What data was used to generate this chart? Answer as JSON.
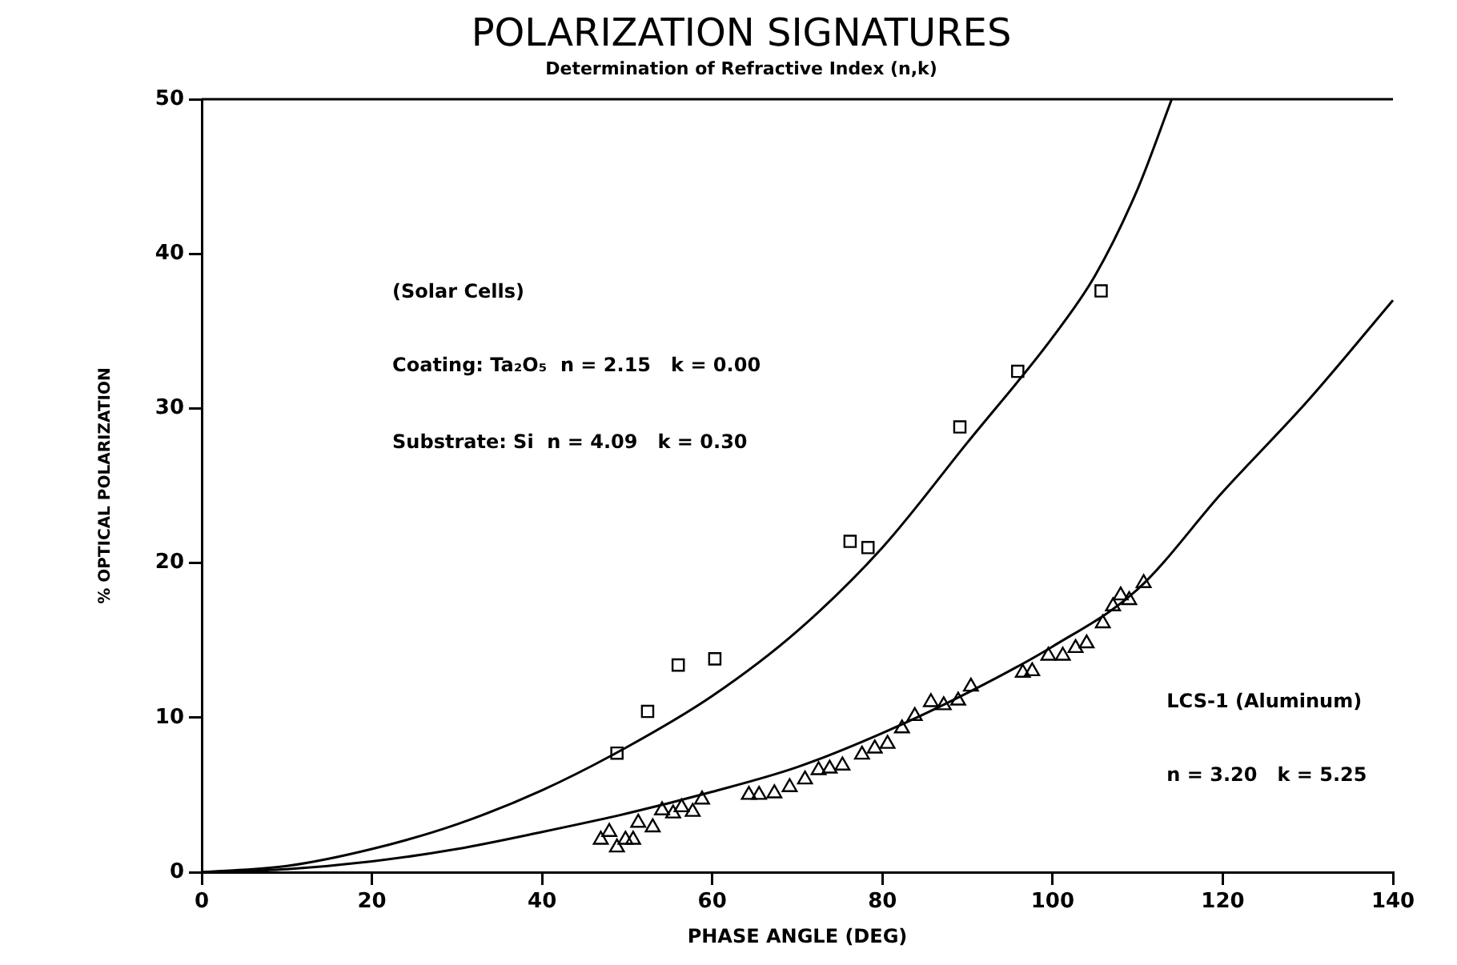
{
  "chart_data": {
    "type": "scatter",
    "title": "POLARIZATION SIGNATURES",
    "subtitle": "Determination of Refractive Index (n,k)",
    "xlabel": "PHASE ANGLE (DEG)",
    "ylabel": "% OPTICAL POLARIZATION",
    "xlim": [
      0,
      140
    ],
    "xticks": [
      0,
      20,
      40,
      60,
      80,
      100,
      120,
      140
    ],
    "ylim": [
      0,
      50
    ],
    "yticks": [
      0,
      10,
      20,
      30,
      40,
      50
    ],
    "grid": false,
    "legend": false,
    "annotations": [
      "(Solar Cells)",
      "Coating: Ta₂O₅  n = 2.15   k = 0.00",
      "Substrate: Si  n = 4.09   k = 0.30",
      "LCS-1 (Aluminum)",
      "n = 3.20   k = 5.25"
    ],
    "series": [
      {
        "marker": "square",
        "color": "#000000",
        "x": [
          48.8,
          52.4,
          56.0,
          60.3,
          76.2,
          78.3,
          89.1,
          95.9,
          105.7
        ],
        "values": [
          7.7,
          10.4,
          13.4,
          13.8,
          21.4,
          21.0,
          28.8,
          32.4,
          37.6
        ]
      },
      {
        "marker": "triangle",
        "color": "#000000",
        "x": [
          46.9,
          47.9,
          48.8,
          49.8,
          50.7,
          51.3,
          53.0,
          54.1,
          55.4,
          56.4,
          57.7,
          58.8,
          64.3,
          65.5,
          67.3,
          69.1,
          70.9,
          72.5,
          73.8,
          75.3,
          77.6,
          79.1,
          80.6,
          82.3,
          83.8,
          85.7,
          87.2,
          88.9,
          90.4,
          96.5,
          97.6,
          99.5,
          101.2,
          102.7,
          104.0,
          105.9,
          107.1,
          108.0,
          109.0,
          110.7
        ],
        "values": [
          2.1,
          2.6,
          1.6,
          2.1,
          2.1,
          3.2,
          2.9,
          4.0,
          3.8,
          4.2,
          3.9,
          4.7,
          5.0,
          5.0,
          5.1,
          5.5,
          6.0,
          6.6,
          6.7,
          6.9,
          7.6,
          8.0,
          8.3,
          9.3,
          10.1,
          11.0,
          10.8,
          11.1,
          12.0,
          12.9,
          13.0,
          14.0,
          14.0,
          14.5,
          14.8,
          16.1,
          17.2,
          17.9,
          17.6,
          18.7
        ]
      },
      {
        "type": "line",
        "marker": "none",
        "line_style": "solid",
        "color": "#000000",
        "x": [
          0,
          10,
          20,
          30,
          40,
          50,
          60,
          70,
          80,
          90,
          100,
          105,
          110,
          114
        ],
        "values": [
          0,
          0.4,
          1.5,
          3.1,
          5.3,
          8.1,
          11.4,
          15.6,
          21.0,
          27.8,
          34.6,
          38.6,
          44.2,
          50
        ]
      },
      {
        "type": "line",
        "marker": "none",
        "line_style": "solid",
        "color": "#000000",
        "x": [
          0,
          10,
          20,
          30,
          40,
          50,
          60,
          70,
          80,
          90,
          100,
          110,
          120,
          130,
          140
        ],
        "values": [
          0,
          0.2,
          0.7,
          1.5,
          2.6,
          3.8,
          5.2,
          6.8,
          9.0,
          11.6,
          14.6,
          18.3,
          24.6,
          30.5,
          37
        ]
      }
    ]
  }
}
